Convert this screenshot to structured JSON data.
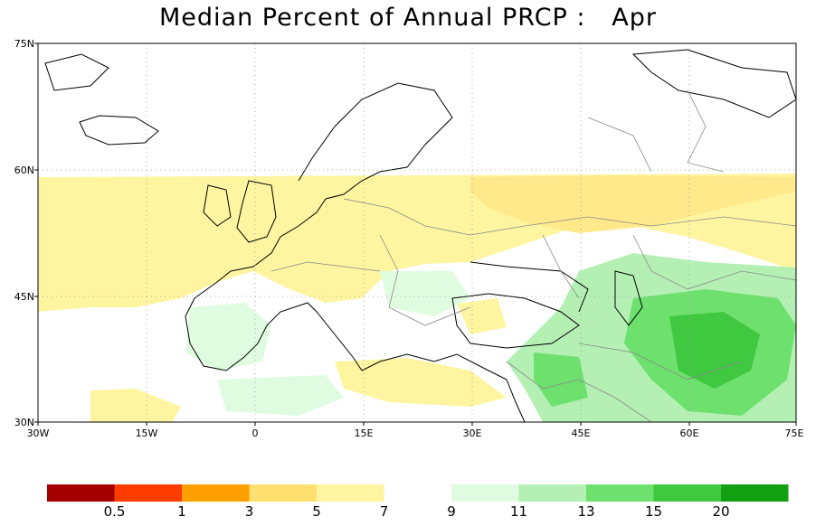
{
  "title": "Median Percent of Annual PRCP :   Apr",
  "map": {
    "lat_labels": [
      "75N",
      "60N",
      "45N",
      "30N"
    ],
    "lon_labels": [
      "30W",
      "15W",
      "0",
      "15E",
      "30E",
      "45E",
      "60E",
      "75E"
    ]
  },
  "legend": {
    "labels": [
      "0.5",
      "1",
      "3",
      "5",
      "7",
      "9",
      "11",
      "13",
      "15",
      "20"
    ],
    "colors": [
      "#a50000",
      "#ff3c00",
      "#ffa000",
      "#ffe06e",
      "#fff5a0",
      "#ffffff",
      "#e0fce0",
      "#b4f0b4",
      "#6ee06e",
      "#40c840",
      "#12a012"
    ]
  }
}
